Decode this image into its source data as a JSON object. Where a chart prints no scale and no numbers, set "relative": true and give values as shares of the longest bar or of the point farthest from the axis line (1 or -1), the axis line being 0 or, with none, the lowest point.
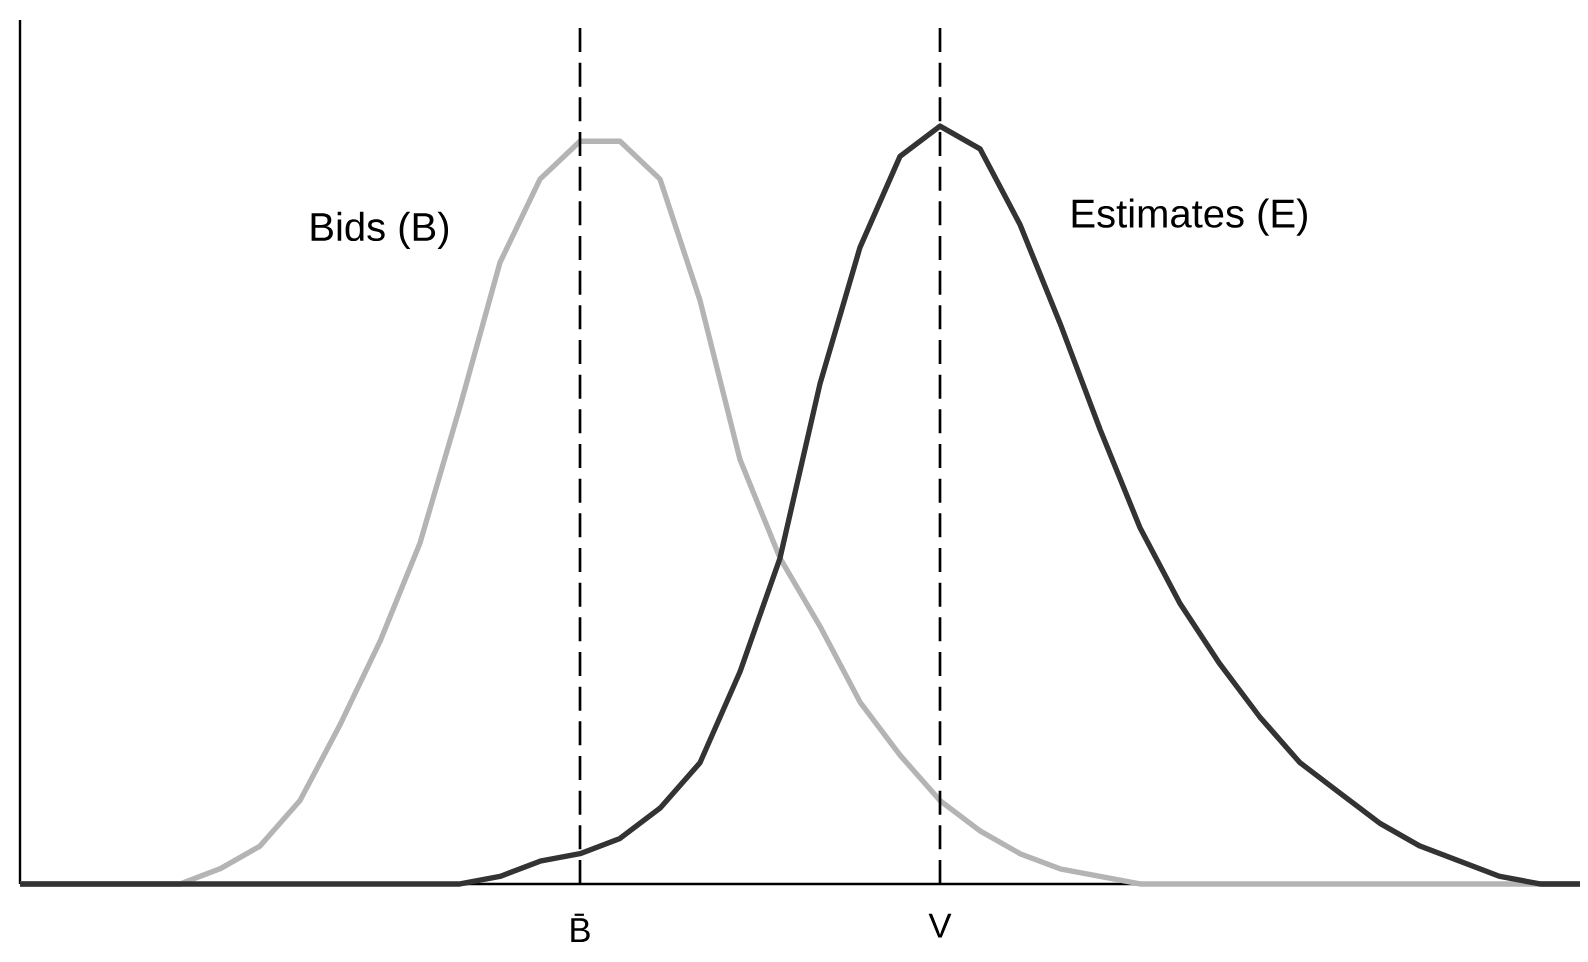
{
  "chart_data": {
    "type": "line",
    "relative": true,
    "line_style": "solid",
    "legend": false,
    "categories": [
      null,
      null,
      null,
      null,
      null,
      null,
      null,
      null,
      null,
      null,
      null,
      null,
      null,
      null,
      null,
      null,
      null,
      null,
      null,
      null,
      null,
      null,
      null,
      null,
      null,
      null,
      null,
      null,
      null,
      null,
      null,
      null,
      null,
      null,
      null,
      null,
      null,
      null,
      null,
      null
    ],
    "series": [
      {
        "name": "Bids (B)",
        "color": "#b4b4b4",
        "values": [
          0,
          0,
          0,
          0,
          0,
          0.02,
          0.05,
          0.11,
          0.21,
          0.32,
          0.45,
          0.63,
          0.82,
          0.93,
          0.98,
          0.98,
          0.93,
          0.77,
          0.56,
          0.43,
          0.34,
          0.24,
          0.17,
          0.11,
          0.07,
          0.04,
          0.02,
          0.01,
          0,
          0,
          0,
          0,
          0,
          0,
          0,
          0,
          0,
          0,
          0,
          0
        ]
      },
      {
        "name": "Estimates (E)",
        "color": "#333333",
        "values": [
          0,
          0,
          0,
          0,
          0,
          0,
          0,
          0,
          0,
          0,
          0,
          0,
          0.01,
          0.03,
          0.04,
          0.06,
          0.1,
          0.16,
          0.28,
          0.43,
          0.66,
          0.84,
          0.96,
          1,
          0.97,
          0.87,
          0.74,
          0.6,
          0.47,
          0.37,
          0.29,
          0.22,
          0.16,
          0.12,
          0.08,
          0.05,
          0.03,
          0.01,
          0,
          0
        ]
      }
    ],
    "annotations": [
      "B̄",
      "V"
    ]
  }
}
